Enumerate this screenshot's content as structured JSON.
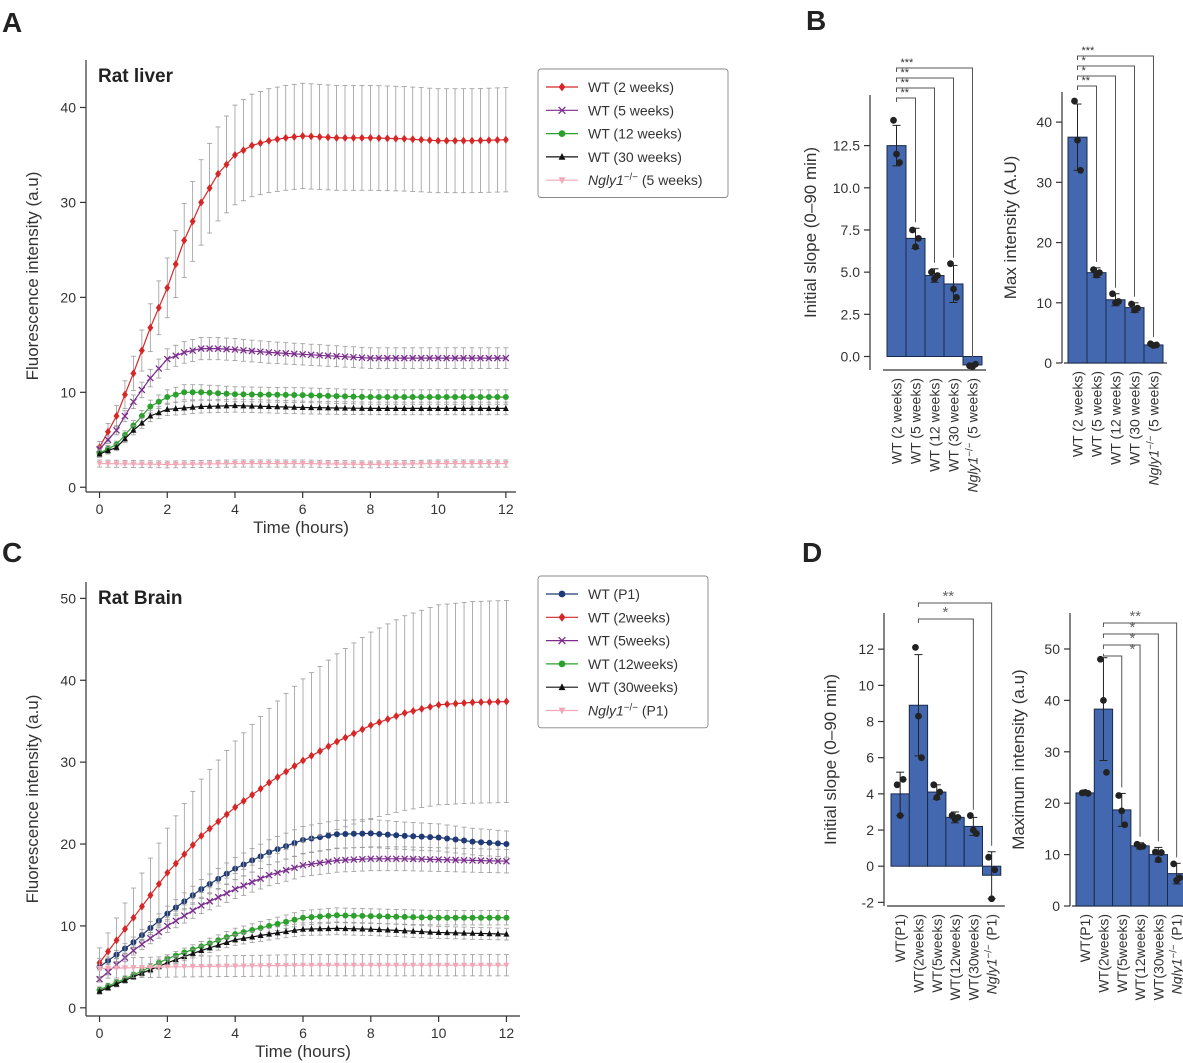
{
  "chart_data": [
    {
      "id": "A",
      "type": "line",
      "panel_label": "A",
      "title": "Rat liver",
      "xlabel": "Time (hours)",
      "ylabel": "Fluorescence intensity (a.u)",
      "xlim": [
        -0.4,
        12.3
      ],
      "ylim": [
        -0.5,
        45
      ],
      "xticks": [
        0,
        2,
        4,
        6,
        8,
        10,
        12
      ],
      "yticks": [
        0,
        10,
        20,
        30,
        40
      ],
      "legend_position": "top-right",
      "series": [
        {
          "name": "WT (2 weeks)",
          "color": "#d62728",
          "marker": "diamond",
          "err_frac": 0.15,
          "keypoints": [
            [
              0,
              4.2
            ],
            [
              0.5,
              7.5
            ],
            [
              1,
              12
            ],
            [
              1.5,
              16.8
            ],
            [
              2,
              21
            ],
            [
              2.5,
              26
            ],
            [
              3,
              30
            ],
            [
              3.5,
              33
            ],
            [
              4,
              35
            ],
            [
              4.5,
              36
            ],
            [
              5,
              36.5
            ],
            [
              5.5,
              36.8
            ],
            [
              6,
              37
            ],
            [
              7,
              36.8
            ],
            [
              8,
              36.8
            ],
            [
              9,
              36.7
            ],
            [
              10,
              36.5
            ],
            [
              11,
              36.5
            ],
            [
              12,
              36.6
            ]
          ]
        },
        {
          "name": "WT (5 weeks)",
          "color": "#7b2d8e",
          "marker": "x",
          "err_frac": 0.08,
          "keypoints": [
            [
              0,
              4
            ],
            [
              0.5,
              6
            ],
            [
              1,
              9
            ],
            [
              1.5,
              11.5
            ],
            [
              2,
              13.5
            ],
            [
              2.5,
              14.2
            ],
            [
              3,
              14.6
            ],
            [
              3.5,
              14.6
            ],
            [
              4,
              14.5
            ],
            [
              5,
              14.2
            ],
            [
              6,
              14
            ],
            [
              8,
              13.6
            ],
            [
              10,
              13.6
            ],
            [
              12,
              13.6
            ]
          ]
        },
        {
          "name": "WT (12 weeks)",
          "color": "#2ca02c",
          "marker": "circle",
          "err_frac": 0.08,
          "keypoints": [
            [
              0,
              3.6
            ],
            [
              0.5,
              4.5
            ],
            [
              1,
              6.5
            ],
            [
              1.5,
              8.5
            ],
            [
              2,
              9.5
            ],
            [
              2.5,
              10
            ],
            [
              3,
              10
            ],
            [
              4,
              9.8
            ],
            [
              6,
              9.7
            ],
            [
              8,
              9.5
            ],
            [
              10,
              9.5
            ],
            [
              12,
              9.5
            ]
          ]
        },
        {
          "name": "WT (30 weeks)",
          "color": "#111111",
          "marker": "triangle",
          "err_frac": 0.08,
          "keypoints": [
            [
              0,
              3.5
            ],
            [
              0.5,
              4.2
            ],
            [
              1,
              6
            ],
            [
              1.5,
              7.5
            ],
            [
              2,
              8.2
            ],
            [
              3,
              8.5
            ],
            [
              4,
              8.6
            ],
            [
              6,
              8.4
            ],
            [
              8,
              8.3
            ],
            [
              10,
              8.3
            ],
            [
              12,
              8.3
            ]
          ]
        },
        {
          "name": "Ngly1−/− (5 weeks)",
          "color": "#f0a8b8",
          "marker": "triangle-down",
          "err_frac": 0.15,
          "keypoints": [
            [
              0,
              2.5
            ],
            [
              2,
              2.4
            ],
            [
              4,
              2.5
            ],
            [
              6,
              2.5
            ],
            [
              8,
              2.4
            ],
            [
              10,
              2.5
            ],
            [
              12,
              2.5
            ]
          ]
        }
      ]
    },
    {
      "id": "B1",
      "type": "bar",
      "panel_label": "B",
      "ylabel": "Initial slope (0–90 min)",
      "ylim": [
        -0.8,
        15.5
      ],
      "yticks": [
        0.0,
        2.5,
        5.0,
        7.5,
        10.0,
        12.5
      ],
      "ytick_labels": [
        "0.0",
        "2.5",
        "5.0",
        "7.5",
        "10.0",
        "12.5"
      ],
      "categories": [
        "WT (2 weeks)",
        "WT (5 weeks)",
        "WT (12 weeks)",
        "WT (30 weeks)",
        "Ngly1−/− (5 weeks)"
      ],
      "values": [
        12.5,
        7.0,
        4.8,
        4.3,
        -0.5
      ],
      "errors": [
        1.2,
        0.6,
        0.4,
        1.1,
        0.1
      ],
      "points": [
        [
          14.0,
          12.0,
          11.5
        ],
        [
          7.5,
          6.5,
          7.0
        ],
        [
          5.0,
          4.6,
          4.8
        ],
        [
          5.5,
          4.0,
          3.5
        ],
        [
          -0.55,
          -0.6,
          -0.45
        ]
      ],
      "bar_color": "#4468b0",
      "significance": [
        {
          "from": 0,
          "to": 1,
          "label": "**"
        },
        {
          "from": 0,
          "to": 2,
          "label": "**"
        },
        {
          "from": 0,
          "to": 3,
          "label": "**"
        },
        {
          "from": 0,
          "to": 4,
          "label": "***"
        }
      ]
    },
    {
      "id": "B2",
      "type": "bar",
      "ylabel": "Max intensity (A.U)",
      "ylim": [
        0,
        45
      ],
      "yticks": [
        0,
        10,
        20,
        30,
        40
      ],
      "categories": [
        "WT (2 weeks)",
        "WT (5 weeks)",
        "WT (12 weeks)",
        "WT (30 weeks)",
        "Ngly1−/− (5 weeks)"
      ],
      "values": [
        37.5,
        15.0,
        10.5,
        9.2,
        3.0
      ],
      "errors": [
        5.5,
        0.8,
        1.0,
        0.8,
        0.3
      ],
      "points": [
        [
          43.5,
          37.0,
          32.0
        ],
        [
          15.5,
          14.6,
          15.0
        ],
        [
          11.5,
          10.0,
          10.2
        ],
        [
          9.8,
          8.8,
          9.1
        ],
        [
          3.2,
          2.9,
          3.0
        ]
      ],
      "bar_color": "#4468b0",
      "significance": [
        {
          "from": 0,
          "to": 1,
          "label": "**"
        },
        {
          "from": 0,
          "to": 2,
          "label": "*"
        },
        {
          "from": 0,
          "to": 3,
          "label": "*"
        },
        {
          "from": 0,
          "to": 4,
          "label": "***"
        }
      ]
    },
    {
      "id": "C",
      "type": "line",
      "panel_label": "C",
      "title": "Rat Brain",
      "xlabel": "Time (hours)",
      "ylabel": "Fluorescence intensity (a.u)",
      "xlim": [
        -0.4,
        12.4
      ],
      "ylim": [
        -1,
        52
      ],
      "xticks": [
        0,
        2,
        4,
        6,
        8,
        10,
        12
      ],
      "yticks": [
        0,
        10,
        20,
        30,
        40,
        50
      ],
      "legend_position": "top-right",
      "series": [
        {
          "name": "WT (P1)",
          "color": "#1f3a75",
          "marker": "circle",
          "err_frac": 0.08,
          "keypoints": [
            [
              0,
              5
            ],
            [
              1,
              8
            ],
            [
              2,
              11.5
            ],
            [
              3,
              14.5
            ],
            [
              4,
              17
            ],
            [
              5,
              19
            ],
            [
              6,
              20.5
            ],
            [
              7,
              21.2
            ],
            [
              8,
              21.3
            ],
            [
              9,
              21
            ],
            [
              10,
              20.8
            ],
            [
              11,
              20.3
            ],
            [
              12,
              20
            ]
          ]
        },
        {
          "name": "WT (2weeks)",
          "color": "#d62728",
          "marker": "diamond",
          "err_frac": 0.33,
          "keypoints": [
            [
              0,
              5.5
            ],
            [
              1,
              11
            ],
            [
              2,
              16.5
            ],
            [
              3,
              21
            ],
            [
              4,
              24.5
            ],
            [
              5,
              27.5
            ],
            [
              6,
              30.2
            ],
            [
              7,
              32.5
            ],
            [
              8,
              34.5
            ],
            [
              9,
              36
            ],
            [
              10,
              37
            ],
            [
              11,
              37.3
            ],
            [
              12,
              37.4
            ]
          ]
        },
        {
          "name": "WT (5weeks)",
          "color": "#7b2d8e",
          "marker": "x",
          "err_frac": 0.08,
          "keypoints": [
            [
              0,
              3.5
            ],
            [
              1,
              7
            ],
            [
              2,
              10
            ],
            [
              3,
              12.5
            ],
            [
              4,
              14.5
            ],
            [
              5,
              16.2
            ],
            [
              6,
              17.4
            ],
            [
              7,
              18
            ],
            [
              8,
              18.2
            ],
            [
              9,
              18.2
            ],
            [
              10,
              18.1
            ],
            [
              11,
              18
            ],
            [
              12,
              17.9
            ]
          ]
        },
        {
          "name": "WT (12weeks)",
          "color": "#2ca02c",
          "marker": "circle",
          "err_frac": 0.08,
          "keypoints": [
            [
              0,
              2.2
            ],
            [
              1,
              4
            ],
            [
              2,
              6
            ],
            [
              3,
              7.5
            ],
            [
              4,
              9
            ],
            [
              5,
              10
            ],
            [
              6,
              11
            ],
            [
              7,
              11.3
            ],
            [
              8,
              11.2
            ],
            [
              9,
              11.1
            ],
            [
              10,
              11
            ],
            [
              11,
              11
            ],
            [
              12,
              11
            ]
          ]
        },
        {
          "name": "WT (30weeks)",
          "color": "#111111",
          "marker": "triangle",
          "err_frac": 0.08,
          "keypoints": [
            [
              0,
              2
            ],
            [
              1,
              3.8
            ],
            [
              2,
              5.5
            ],
            [
              3,
              7
            ],
            [
              4,
              8.3
            ],
            [
              5,
              9
            ],
            [
              6,
              9.6
            ],
            [
              7,
              9.7
            ],
            [
              8,
              9.6
            ],
            [
              9,
              9.4
            ],
            [
              10,
              9.2
            ],
            [
              11,
              9.1
            ],
            [
              12,
              9
            ]
          ]
        },
        {
          "name": "Ngly1−/− (P1)",
          "color": "#f0a8b8",
          "marker": "triangle-down",
          "err_frac": 0.25,
          "keypoints": [
            [
              0,
              4.8
            ],
            [
              2,
              5
            ],
            [
              4,
              5.1
            ],
            [
              6,
              5.2
            ],
            [
              8,
              5.2
            ],
            [
              10,
              5.2
            ],
            [
              12,
              5.2
            ]
          ]
        }
      ]
    },
    {
      "id": "D1",
      "type": "bar",
      "panel_label": "D",
      "ylabel": "Initial slope (0–90 min)",
      "ylim": [
        -2.2,
        14
      ],
      "yticks": [
        -2,
        0,
        2,
        4,
        6,
        8,
        10,
        12
      ],
      "categories": [
        "WT(P1)",
        "WT(2weeks)",
        "WT(5weeks)",
        "WT(12weeks)",
        "WT(30weeks)",
        "Ngly1−/− (P1)"
      ],
      "values": [
        4.0,
        8.9,
        4.1,
        2.7,
        2.2,
        -0.5
      ],
      "errors": [
        1.2,
        2.8,
        0.4,
        0.3,
        0.5,
        1.3
      ],
      "points": [
        [
          4.5,
          2.8,
          4.8
        ],
        [
          12.1,
          8.3,
          6.0
        ],
        [
          4.5,
          3.8,
          4.1
        ],
        [
          2.8,
          2.6,
          2.7
        ],
        [
          2.8,
          2.0,
          1.8
        ],
        [
          0.5,
          -1.8,
          -0.2
        ]
      ],
      "bar_color": "#4468b0",
      "significance": [
        {
          "from": 1,
          "to": 4,
          "label": "*"
        },
        {
          "from": 1,
          "to": 5,
          "label": "**"
        }
      ]
    },
    {
      "id": "D2",
      "type": "bar",
      "ylabel": "Maximum intensity (a.u)",
      "ylim": [
        0,
        57
      ],
      "yticks": [
        0,
        10,
        20,
        30,
        40,
        50
      ],
      "categories": [
        "WT(P1)",
        "WT(2weeks)",
        "WT(5weeks)",
        "WT(12weeks)",
        "WT(30weeks)",
        "Ngly1−/− (P1)"
      ],
      "values": [
        22.0,
        38.3,
        18.7,
        11.7,
        10.0,
        6.3
      ],
      "errors": [
        0.3,
        10.0,
        3.2,
        0.6,
        1.4,
        2.0
      ],
      "points": [
        [
          22.0,
          22.1,
          21.9
        ],
        [
          48.0,
          40.0,
          26.0
        ],
        [
          21.5,
          18.5,
          15.8
        ],
        [
          12.0,
          11.5,
          11.6
        ],
        [
          10.5,
          9.0,
          10.4
        ],
        [
          8.2,
          5.0,
          5.5
        ]
      ],
      "bar_color": "#4468b0",
      "significance": [
        {
          "from": 1,
          "to": 2,
          "label": "*"
        },
        {
          "from": 1,
          "to": 3,
          "label": "*"
        },
        {
          "from": 1,
          "to": 4,
          "label": "*"
        },
        {
          "from": 1,
          "to": 5,
          "label": "**"
        }
      ]
    }
  ]
}
